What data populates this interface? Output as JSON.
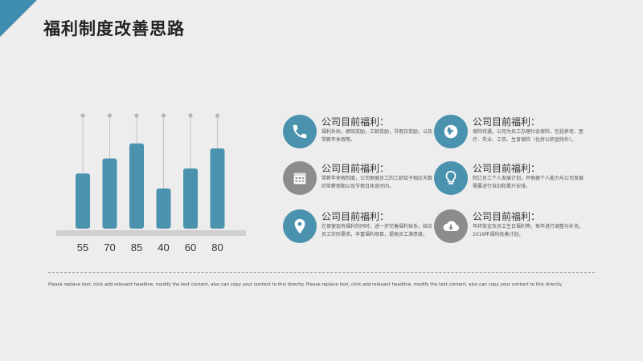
{
  "colors": {
    "accent": "#3f8db0",
    "bar": "#4a92ad",
    "gray": "#8c8c8c",
    "baseline": "#cfcfcf"
  },
  "page": {
    "title": "福利制度改善思路"
  },
  "chart_data": {
    "type": "bar",
    "values": [
      55,
      70,
      85,
      40,
      60,
      80
    ],
    "tick_labels": [
      "55",
      "70",
      "85",
      "40",
      "60",
      "80"
    ],
    "ylim": [
      0,
      100
    ]
  },
  "cards": [
    {
      "icon": "phone-icon",
      "color": "#4a92ad",
      "heading": "公司目前福利：",
      "desc": "福利补贴，绩效奖励，工龄奖励，节假日奖励，以及带薪年休假等。"
    },
    {
      "icon": "globe-icon",
      "color": "#4a92ad",
      "heading": "公司目前福利：",
      "desc": "保险待遇，公司为员工办理社会保险，包括养老、医疗、失业、工伤、生育保险（住房公积金除外）。"
    },
    {
      "icon": "calendar-icon",
      "color": "#8c8c8c",
      "heading": "公司目前福利：",
      "desc": "带薪年休假制度，公司根据员工的工龄给予相应天数的带薪假期以及节假日休息时间。"
    },
    {
      "icon": "lightbulb-icon",
      "color": "#4a92ad",
      "heading": "公司目前福利：",
      "desc": "制订员工个人发展计划，并根据个人能力与公司发展需要进行培训和晋升安排。"
    },
    {
      "icon": "location-icon",
      "color": "#4a92ad",
      "heading": "公司目前福利：",
      "desc": "在保留现有福利的同时，进一步完善福利体系，结合员工实际需求，丰富福利项目，提高员工满意度。"
    },
    {
      "icon": "cloud-download-icon",
      "color": "#8c8c8c",
      "heading": "公司目前福利：",
      "desc": "年终奖金及员工生日福利等，每年进行调整与补充。2018年福利改善计划。"
    }
  ],
  "footer": "Please replace text, click add relevant headline, modify the text content, also can copy your content to this directly. Please replace text, click add relevant headline, modify the text content, also can copy your content to this directly."
}
